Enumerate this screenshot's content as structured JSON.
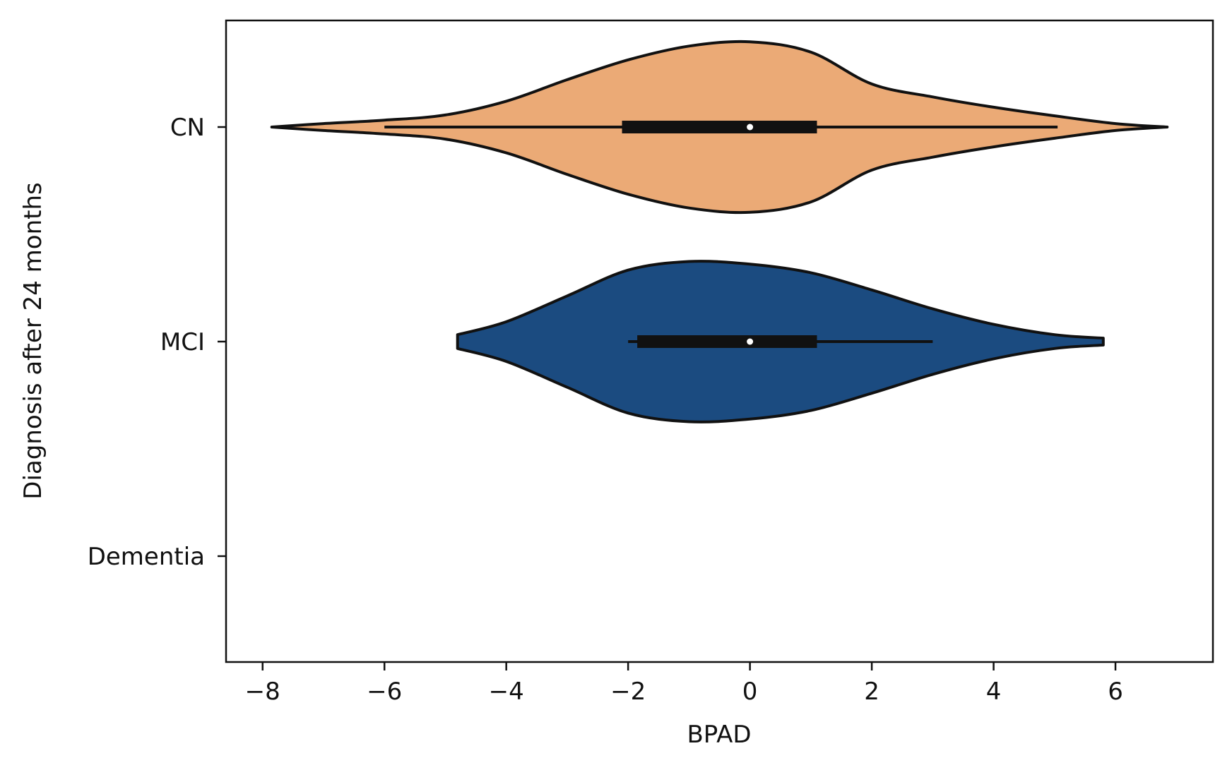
{
  "chart_data": {
    "type": "violin",
    "orientation": "horizontal",
    "xlabel": "BPAD",
    "ylabel": "Diagnosis after 24 months",
    "categories": [
      "CN",
      "MCI",
      "Dementia"
    ],
    "xlim": [
      -8.6,
      7.6
    ],
    "xticks": [
      -8,
      -6,
      -4,
      -2,
      0,
      2,
      4,
      6
    ],
    "xtick_labels": [
      "−8",
      "−6",
      "−4",
      "−2",
      "0",
      "2",
      "4",
      "6"
    ],
    "grid": false,
    "colors": {
      "CN": "#EBAA76",
      "MCI": "#1B4B80",
      "outline": "#111111"
    },
    "violins": [
      {
        "category": "CN",
        "density_x": [
          -7.85,
          -7.0,
          -6.0,
          -5.0,
          -4.0,
          -3.0,
          -2.0,
          -1.0,
          0.0,
          1.0,
          2.0,
          3.0,
          4.0,
          5.0,
          6.0,
          6.85
        ],
        "density_half_width": [
          0.0,
          0.04,
          0.08,
          0.14,
          0.3,
          0.55,
          0.78,
          0.94,
          0.99,
          0.87,
          0.5,
          0.35,
          0.23,
          0.13,
          0.04,
          0.0
        ],
        "whisker_low": -6.0,
        "q1": -2.1,
        "median": 0.0,
        "q3": 1.1,
        "whisker_high": 5.05
      },
      {
        "category": "MCI",
        "density_x": [
          -4.8,
          -4.0,
          -3.0,
          -2.0,
          -1.0,
          0.0,
          1.0,
          2.0,
          3.0,
          4.0,
          5.0,
          5.8
        ],
        "density_half_width": [
          0.08,
          0.23,
          0.53,
          0.83,
          0.93,
          0.9,
          0.8,
          0.6,
          0.38,
          0.2,
          0.08,
          0.04
        ],
        "whisker_low": -2.0,
        "q1": -1.85,
        "median": 0.0,
        "q3": 1.1,
        "whisker_high": 3.0
      }
    ]
  }
}
